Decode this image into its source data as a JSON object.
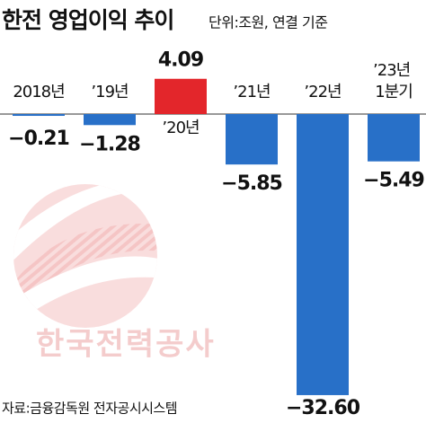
{
  "chart_data": {
    "type": "bar",
    "title": "한전 영업이익 추이",
    "subtitle": "단위:조원, 연결 기준",
    "source": "자료:금융감독원 전자공시시스템",
    "watermark": "한국전력공사",
    "categories": [
      "2018년",
      "’19년",
      "’20년",
      "’21년",
      "’22년",
      "’23년 1분기"
    ],
    "values": [
      -0.21,
      -1.28,
      4.09,
      -5.85,
      -32.6,
      -5.49
    ],
    "value_labels": [
      "−0.21",
      "−1.28",
      "4.09",
      "−5.85",
      "−32.60",
      "−5.49"
    ],
    "colors": [
      "#2870c8",
      "#2870c8",
      "#e3262b",
      "#2870c8",
      "#2870c8",
      "#2870c8"
    ]
  }
}
